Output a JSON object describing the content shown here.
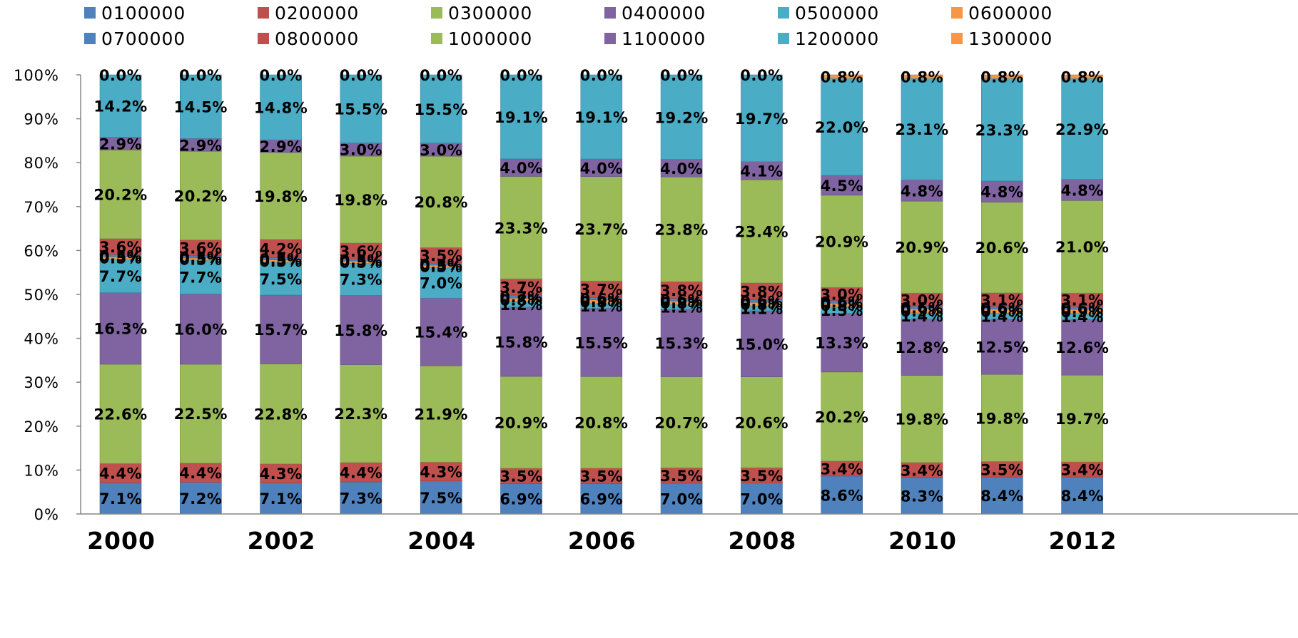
{
  "chart_data": {
    "type": "bar",
    "stacked": true,
    "percent_stacked": true,
    "title": "",
    "xlabel": "",
    "ylabel": "",
    "ylim": [
      0,
      100
    ],
    "y_ticks": [
      "0%",
      "10%",
      "20%",
      "30%",
      "40%",
      "50%",
      "60%",
      "70%",
      "80%",
      "90%",
      "100%"
    ],
    "x_tick_labels": [
      "2000",
      "2002",
      "2004",
      "2006",
      "2008",
      "2010",
      "2012"
    ],
    "categories": [
      "2000",
      "2001",
      "2002",
      "2003",
      "2004",
      "2005",
      "2006",
      "2007",
      "2008",
      "2009",
      "2010",
      "2011",
      "2012"
    ],
    "legend_position": "top",
    "grid": false,
    "series": [
      {
        "name": "0100000",
        "color": "#4F81BD",
        "values": [
          7.1,
          7.2,
          7.1,
          7.3,
          7.5,
          6.9,
          6.9,
          7.0,
          7.0,
          8.6,
          8.3,
          8.4,
          8.4
        ]
      },
      {
        "name": "0200000",
        "color": "#C0504D",
        "values": [
          4.4,
          4.4,
          4.3,
          4.4,
          4.3,
          3.5,
          3.5,
          3.5,
          3.5,
          3.4,
          3.4,
          3.5,
          3.4
        ]
      },
      {
        "name": "0300000",
        "color": "#9BBB59",
        "values": [
          22.6,
          22.5,
          22.8,
          22.3,
          21.9,
          20.9,
          20.8,
          20.7,
          20.6,
          20.2,
          19.8,
          19.8,
          19.7
        ]
      },
      {
        "name": "0400000",
        "color": "#8064A2",
        "values": [
          16.3,
          16.0,
          15.7,
          15.8,
          15.4,
          15.8,
          15.5,
          15.3,
          15.0,
          13.3,
          12.8,
          12.5,
          12.6
        ]
      },
      {
        "name": "0500000",
        "color": "#4BACC6",
        "values": [
          7.7,
          7.7,
          7.5,
          7.3,
          7.0,
          1.2,
          1.1,
          1.1,
          1.1,
          1.5,
          1.4,
          1.4,
          1.4
        ]
      },
      {
        "name": "0600000",
        "color": "#F79646",
        "values": [
          0.5,
          0.5,
          0.5,
          0.5,
          0.5,
          0.8,
          0.8,
          0.8,
          0.8,
          0.8,
          0.9,
          0.9,
          0.9
        ]
      },
      {
        "name": "0700000",
        "color": "#4F81BD",
        "values": [
          0.5,
          0.5,
          0.5,
          0.5,
          0.5,
          0.7,
          0.6,
          0.6,
          0.6,
          0.6,
          0.6,
          0.6,
          0.6
        ]
      },
      {
        "name": "0800000",
        "color": "#C0504D",
        "values": [
          3.6,
          3.6,
          4.2,
          3.6,
          3.5,
          3.7,
          3.7,
          3.8,
          3.8,
          3.0,
          3.0,
          3.1,
          3.1
        ]
      },
      {
        "name": "1000000",
        "color": "#9BBB59",
        "values": [
          20.2,
          20.2,
          19.8,
          19.8,
          20.8,
          23.3,
          23.7,
          23.8,
          23.4,
          20.9,
          20.9,
          20.6,
          21.0
        ]
      },
      {
        "name": "1100000",
        "color": "#8064A2",
        "values": [
          2.9,
          2.9,
          2.9,
          3.0,
          3.0,
          4.0,
          4.0,
          4.0,
          4.1,
          4.5,
          4.8,
          4.8,
          4.8
        ]
      },
      {
        "name": "1200000",
        "color": "#4BACC6",
        "values": [
          14.2,
          14.5,
          14.8,
          15.5,
          15.5,
          19.1,
          19.1,
          19.2,
          19.7,
          22.0,
          23.1,
          23.3,
          22.9
        ]
      },
      {
        "name": "1300000",
        "color": "#F79646",
        "values": [
          0.0,
          0.0,
          0.0,
          0.0,
          0.0,
          0.0,
          0.0,
          0.0,
          0.0,
          0.8,
          0.8,
          0.8,
          0.8
        ]
      }
    ]
  }
}
